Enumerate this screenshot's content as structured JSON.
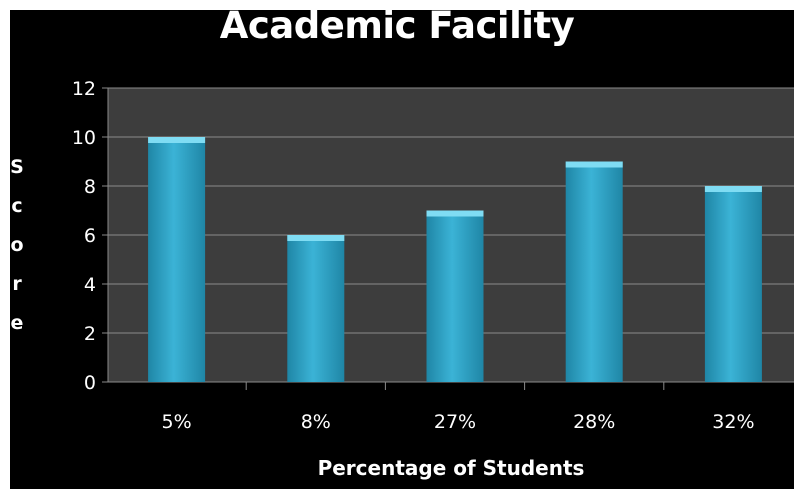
{
  "chart_data": {
    "type": "bar",
    "title": "Academic Facility",
    "xlabel": "Percentage of Students",
    "ylabel": "Score",
    "categories": [
      "5%",
      "8%",
      "27%",
      "28%",
      "32%"
    ],
    "values": [
      10,
      6,
      7,
      9,
      8
    ],
    "ylim": [
      0,
      12
    ],
    "yticks": [
      "0",
      "2",
      "4",
      "6",
      "8",
      "10",
      "12"
    ],
    "grid": true,
    "legend": "none",
    "colors": {
      "background": "#000000",
      "plot_area": "#3d3d3d",
      "gridline": "#8a8a8a",
      "bar": "#3bb3d6",
      "bar_light": "#7fdcf3",
      "bar_dark": "#1f86a6",
      "text": "#ffffff"
    }
  }
}
